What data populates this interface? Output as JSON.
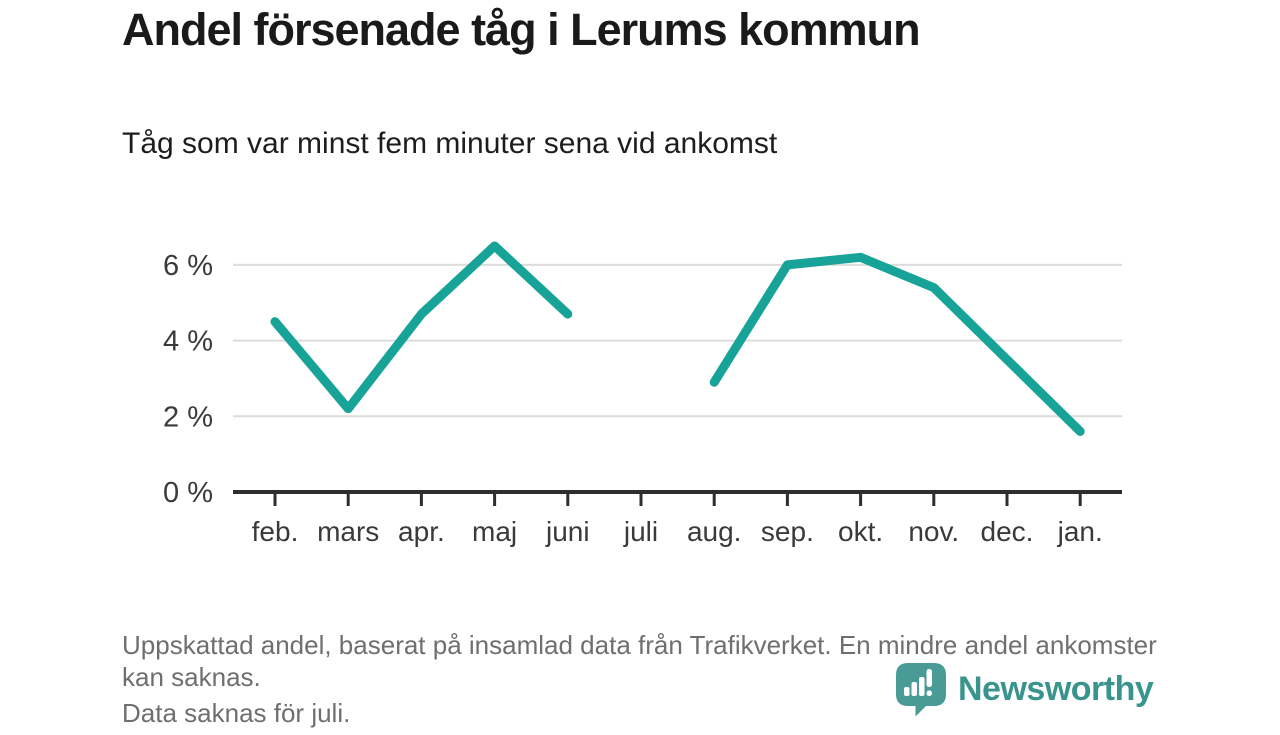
{
  "header": {
    "title": "Andel försenade tåg i Lerums kommun",
    "subtitle": "Tåg som var minst fem minuter sena vid ankomst"
  },
  "chart_data": {
    "type": "line",
    "title": "Andel försenade tåg i Lerums kommun",
    "subtitle": "Tåg som var minst fem minuter sena vid ankomst",
    "categories": [
      "feb.",
      "mars",
      "apr.",
      "maj",
      "juni",
      "juli",
      "aug.",
      "sep.",
      "okt.",
      "nov.",
      "dec.",
      "jan."
    ],
    "series": [
      {
        "name": "Andel försenade tåg",
        "values": [
          4.5,
          2.2,
          4.7,
          6.5,
          4.7,
          null,
          2.9,
          6.0,
          6.2,
          5.4,
          3.5,
          1.6
        ]
      }
    ],
    "unit": "%",
    "xlabel": "",
    "ylabel": "",
    "ylim": [
      0,
      7
    ],
    "yticks": [
      0,
      2,
      4,
      6
    ],
    "ytick_labels": [
      "0 %",
      "2 %",
      "4 %",
      "6 %"
    ],
    "grid": "horizontal",
    "legend": "none",
    "missing_data": "juli"
  },
  "footer": {
    "note": "Uppskattad andel, baserat på insamlad data från Trafikverket. En mindre andel ankomster kan saknas.",
    "note2": "Data saknas för juli.",
    "logo_text": "Newsworthy"
  },
  "colors": {
    "line": "#17a398",
    "grid": "#dcdcdc",
    "axis": "#2e2e2e",
    "tick_label": "#3a3a3a",
    "footer_text": "#6f6f6f",
    "logo_teal": "#4a9b95",
    "logo_text_teal": "#3a948e"
  }
}
